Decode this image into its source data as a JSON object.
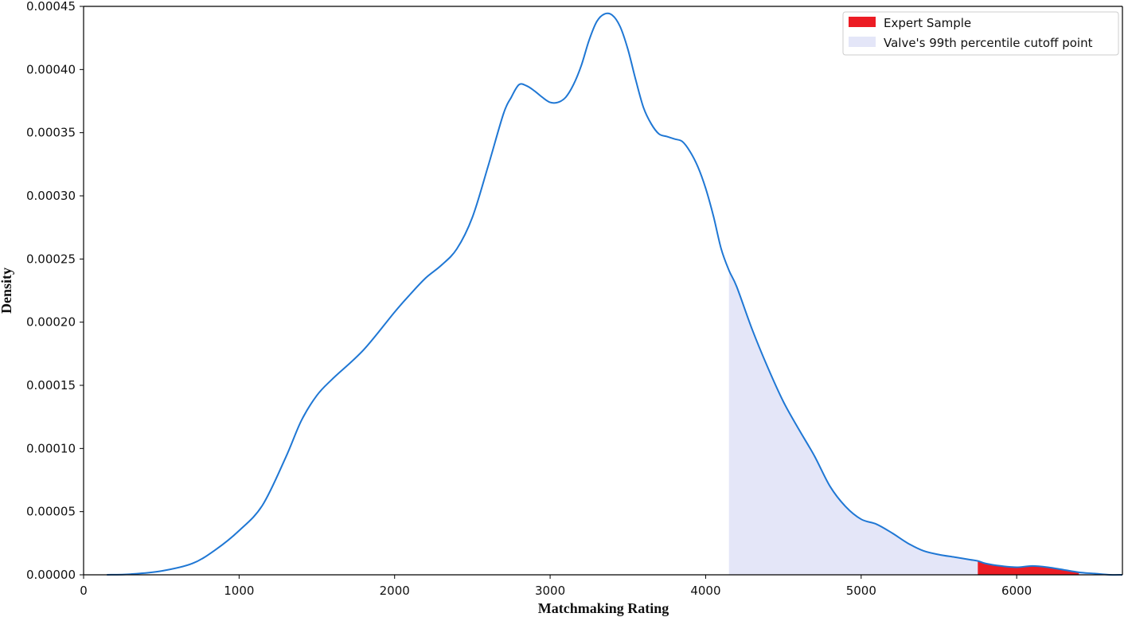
{
  "chart_data": {
    "type": "area",
    "title": "",
    "xlabel": "Matchmaking Rating",
    "ylabel": "Density",
    "xlim": [
      0,
      6680
    ],
    "ylim": [
      0,
      0.00045
    ],
    "xticks": [
      {
        "value": 0,
        "label": "0"
      },
      {
        "value": 1000,
        "label": "1000"
      },
      {
        "value": 2000,
        "label": "2000"
      },
      {
        "value": 3000,
        "label": "3000"
      },
      {
        "value": 4000,
        "label": "4000"
      },
      {
        "value": 5000,
        "label": "5000"
      },
      {
        "value": 6000,
        "label": "6000"
      }
    ],
    "yticks": [
      {
        "value": 0,
        "label": "0.00000"
      },
      {
        "value": 5e-05,
        "label": "0.00005"
      },
      {
        "value": 0.0001,
        "label": "0.00010"
      },
      {
        "value": 0.00015,
        "label": "0.00015"
      },
      {
        "value": 0.0002,
        "label": "0.00020"
      },
      {
        "value": 0.00025,
        "label": "0.00025"
      },
      {
        "value": 0.0003,
        "label": "0.00030"
      },
      {
        "value": 0.00035,
        "label": "0.00035"
      },
      {
        "value": 0.0004,
        "label": "0.00040"
      },
      {
        "value": 0.00045,
        "label": "0.00045"
      }
    ],
    "grid": false,
    "legend_position": "top-right",
    "density_curve": {
      "color": "#1f77d4",
      "x": [
        150,
        300,
        500,
        700,
        850,
        1000,
        1150,
        1300,
        1400,
        1500,
        1600,
        1800,
        2000,
        2100,
        2200,
        2300,
        2400,
        2500,
        2600,
        2700,
        2750,
        2800,
        2850,
        2900,
        2950,
        3000,
        3050,
        3100,
        3150,
        3200,
        3250,
        3300,
        3350,
        3400,
        3450,
        3500,
        3550,
        3600,
        3650,
        3700,
        3750,
        3800,
        3850,
        3900,
        3950,
        4000,
        4050,
        4100,
        4150,
        4200,
        4300,
        4400,
        4500,
        4600,
        4700,
        4800,
        4900,
        5000,
        5100,
        5200,
        5300,
        5400,
        5500,
        5600,
        5700,
        5750,
        5800,
        5900,
        6000,
        6100,
        6200,
        6300,
        6400,
        6500,
        6600,
        6680
      ],
      "y": [
        0,
        5e-07,
        3e-06,
        9e-06,
        2e-05,
        3.5e-05,
        5.5e-05,
        9.3e-05,
        0.000122,
        0.000142,
        0.000155,
        0.000178,
        0.000208,
        0.000222,
        0.000235,
        0.000245,
        0.000258,
        0.000283,
        0.000323,
        0.000365,
        0.000378,
        0.000388,
        0.000387,
        0.000383,
        0.000378,
        0.000374,
        0.000374,
        0.000378,
        0.000388,
        0.000403,
        0.000423,
        0.000438,
        0.000444,
        0.000443,
        0.000434,
        0.000416,
        0.000392,
        0.00037,
        0.000357,
        0.000349,
        0.000347,
        0.000345,
        0.000343,
        0.000335,
        0.000323,
        0.000306,
        0.000284,
        0.000258,
        0.000241,
        0.000228,
        0.000194,
        0.000164,
        0.000137,
        0.000115,
        9.4e-05,
        7e-05,
        5.4e-05,
        4.4e-05,
        4e-05,
        3.3e-05,
        2.5e-05,
        1.9e-05,
        1.6e-05,
        1.4e-05,
        1.2e-05,
        1.1e-05,
        9e-06,
        7e-06,
        6e-06,
        7e-06,
        6e-06,
        4e-06,
        2e-06,
        1e-06,
        0,
        0
      ]
    },
    "shaded_regions": [
      {
        "label": "Valve's 99th percentile cutoff point",
        "from_x": 4150,
        "to_x": 6680,
        "color": "#e4e6f8"
      },
      {
        "label": "Expert Sample",
        "from_x": 5750,
        "to_x": 6400,
        "color": "#ec1c24"
      }
    ],
    "legend": [
      {
        "label": "Expert Sample",
        "color": "#ec1c24"
      },
      {
        "label": "Valve's 99th percentile cutoff point",
        "color": "#e4e6f8"
      }
    ]
  }
}
